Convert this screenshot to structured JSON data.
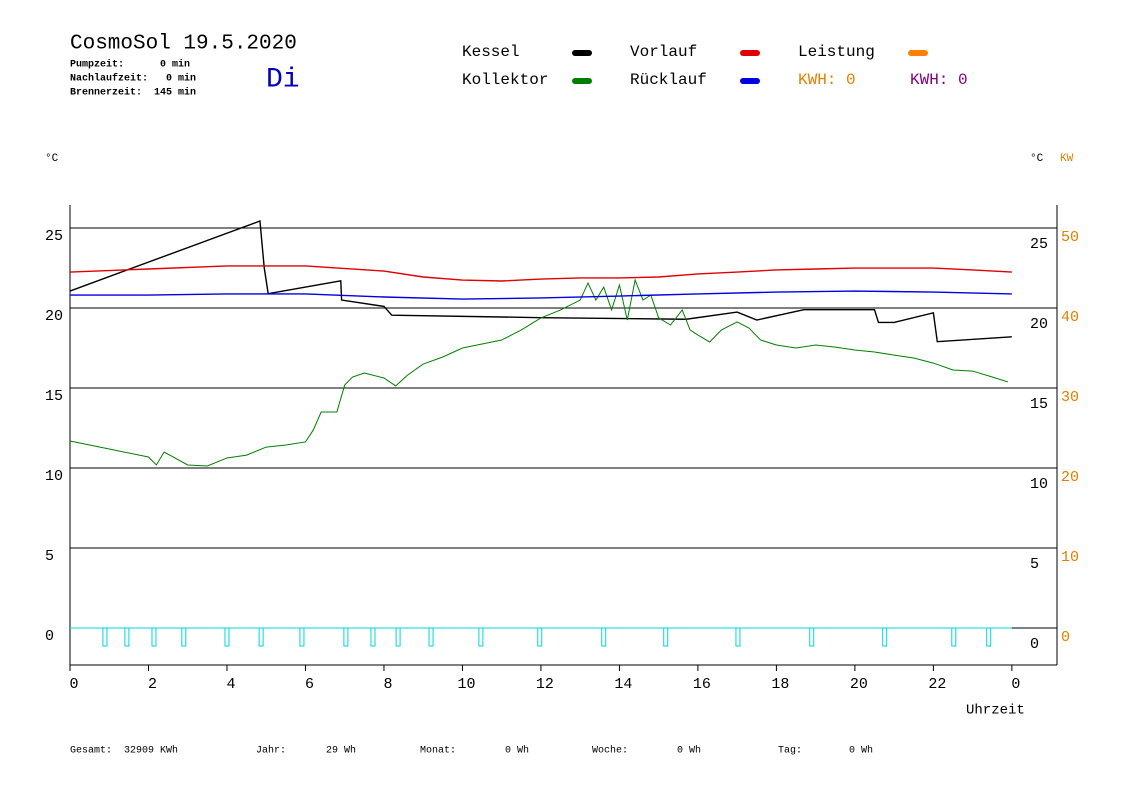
{
  "chart_data": {
    "type": "line",
    "title": "CosmoSol 19.5.2020",
    "info": [
      "Pumpzeit:      0 min",
      "Nachlaufzeit:   0 min",
      "Brennerzeit:  145 min"
    ],
    "weekday": "Di",
    "kwh_labels": [
      {
        "text": "KWH: 0",
        "color": "#e08000"
      },
      {
        "text": "KWH: 0",
        "color": "#800080"
      }
    ],
    "y_label": "°C",
    "y2_label": "°C",
    "y3_label": "KW",
    "x_label": "Uhrzeit",
    "xlim": [
      0,
      25.15
    ],
    "xticks": [
      0,
      2,
      4,
      6,
      8,
      10,
      12,
      14,
      16,
      18,
      20,
      22,
      {
        "value": 24,
        "label": "0"
      }
    ],
    "ylim": [
      -2.31,
      26.44
    ],
    "yticks": [
      0,
      5,
      10,
      15,
      20,
      25
    ],
    "y2lim": [
      -4.62,
      52.88
    ],
    "y2ticks": [
      0,
      10,
      20,
      30,
      40,
      50
    ],
    "grid": true,
    "series": [
      {
        "name": "Kessel",
        "color": "#000000",
        "x": [
          0,
          4.84,
          4.95,
          5.05,
          6.9,
          6.92,
          8,
          8.2,
          12,
          15.7,
          17,
          17.5,
          18.7,
          20.5,
          20.6,
          21,
          22.0,
          22.1,
          24
        ],
        "values": [
          21.06,
          25.44,
          22.5,
          20.9,
          21.7,
          20.5,
          20.1,
          19.55,
          19.4,
          19.3,
          19.75,
          19.25,
          19.9,
          19.9,
          19.1,
          19.1,
          19.7,
          17.9,
          18.2
        ]
      },
      {
        "name": "Kollektor",
        "color": "#008000",
        "x": [
          0,
          1,
          2,
          2.2,
          2.4,
          3,
          3.5,
          4,
          4.5,
          5,
          5.5,
          6,
          6.2,
          6.4,
          6.8,
          7,
          7.2,
          7.5,
          8,
          8.3,
          8.6,
          9,
          9.5,
          10,
          10.5,
          11,
          11.5,
          12,
          12.5,
          13,
          13.2,
          13.4,
          13.6,
          13.8,
          14,
          14.2,
          14.4,
          14.6,
          14.8,
          15,
          15.3,
          15.6,
          15.8,
          16,
          16.3,
          16.6,
          17,
          17.3,
          17.6,
          18,
          18.5,
          19,
          19.5,
          20,
          20.5,
          21,
          21.5,
          22,
          22.5,
          23,
          23.5,
          23.9
        ],
        "values": [
          11.69,
          11.19,
          10.69,
          10.19,
          11.0,
          10.19,
          10.13,
          10.63,
          10.81,
          11.31,
          11.44,
          11.63,
          12.38,
          13.5,
          13.5,
          15.19,
          15.69,
          15.94,
          15.63,
          15.13,
          15.81,
          16.5,
          16.94,
          17.5,
          17.75,
          18.0,
          18.63,
          19.38,
          19.88,
          20.5,
          21.56,
          20.5,
          21.31,
          19.88,
          21.44,
          19.25,
          21.75,
          20.5,
          20.81,
          19.38,
          18.94,
          19.88,
          18.63,
          18.31,
          17.88,
          18.63,
          19.13,
          18.75,
          18.0,
          17.69,
          17.5,
          17.69,
          17.56,
          17.38,
          17.25,
          17.06,
          16.88,
          16.56,
          16.13,
          16.06,
          15.69,
          15.38
        ]
      },
      {
        "name": "Vorlauf",
        "color": "#e00000",
        "x": [
          0,
          2,
          4,
          6,
          8,
          9,
          10,
          11,
          12,
          13,
          14,
          15,
          16,
          17,
          18,
          19,
          20,
          21,
          22,
          23,
          24
        ],
        "values": [
          22.25,
          22.44,
          22.63,
          22.63,
          22.31,
          21.94,
          21.75,
          21.69,
          21.81,
          21.88,
          21.88,
          21.94,
          22.13,
          22.25,
          22.38,
          22.44,
          22.5,
          22.5,
          22.5,
          22.38,
          22.25
        ]
      },
      {
        "name": "Rücklauf",
        "color": "#0000e0",
        "x": [
          0,
          2,
          4,
          6,
          8,
          10,
          12,
          14,
          16,
          18,
          20,
          22,
          24
        ],
        "values": [
          20.81,
          20.81,
          20.88,
          20.88,
          20.69,
          20.56,
          20.63,
          20.75,
          20.88,
          21.0,
          21.06,
          21.0,
          20.88
        ]
      },
      {
        "name": "Leistung",
        "color": "#ff8000",
        "x": [],
        "values": []
      }
    ],
    "pump": {
      "color": "#00d8d8",
      "x": [
        0.89,
        1.45,
        2.14,
        2.9,
        4.0,
        4.87,
        5.91,
        7.03,
        7.72,
        8.36,
        9.2,
        10.47,
        11.97,
        13.6,
        15.18,
        17.02,
        18.9,
        20.76,
        22.52,
        23.41
      ]
    },
    "footer": [
      {
        "text": "Gesamt:  32909 KWh"
      },
      {
        "text": "Jahr:"
      },
      {
        "text": "29 Wh"
      },
      {
        "text": "Monat:"
      },
      {
        "text": "0 Wh"
      },
      {
        "text": "Woche:"
      },
      {
        "text": "0 Wh"
      },
      {
        "text": "Tag:"
      },
      {
        "text": "0 Wh"
      }
    ]
  }
}
